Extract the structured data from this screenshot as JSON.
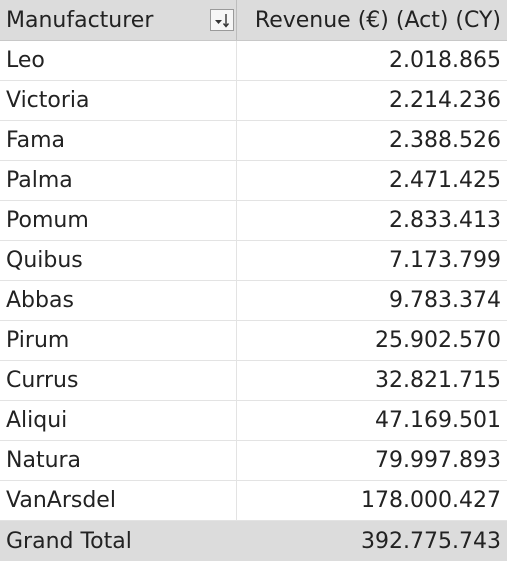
{
  "headers": {
    "manufacturer": "Manufacturer",
    "revenue": "Revenue (€) (Act) (CY)",
    "sort_icon": "sort-ascending-filter-icon"
  },
  "rows": [
    {
      "manufacturer": "Leo",
      "revenue": "2.018.865"
    },
    {
      "manufacturer": "Victoria",
      "revenue": "2.214.236"
    },
    {
      "manufacturer": "Fama",
      "revenue": "2.388.526"
    },
    {
      "manufacturer": "Palma",
      "revenue": "2.471.425"
    },
    {
      "manufacturer": "Pomum",
      "revenue": "2.833.413"
    },
    {
      "manufacturer": "Quibus",
      "revenue": "7.173.799"
    },
    {
      "manufacturer": "Abbas",
      "revenue": "9.783.374"
    },
    {
      "manufacturer": "Pirum",
      "revenue": "25.902.570"
    },
    {
      "manufacturer": "Currus",
      "revenue": "32.821.715"
    },
    {
      "manufacturer": "Aliqui",
      "revenue": "47.169.501"
    },
    {
      "manufacturer": "Natura",
      "revenue": "79.997.893"
    },
    {
      "manufacturer": "VanArsdel",
      "revenue": "178.000.427"
    }
  ],
  "total": {
    "label": "Grand Total",
    "revenue": "392.775.743"
  }
}
